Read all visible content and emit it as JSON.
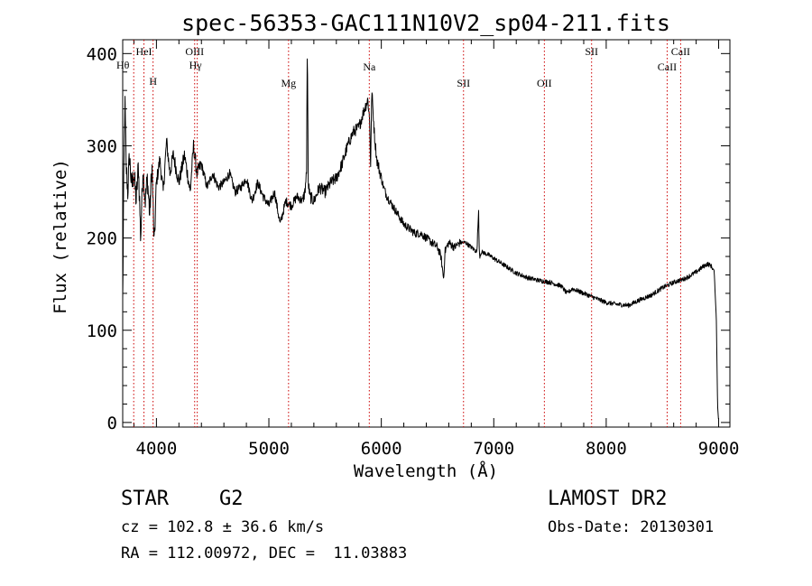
{
  "chart_data": {
    "type": "line",
    "title": "spec-56353-GAC111N10V2_sp04-211.fits",
    "xlabel": "Wavelength (Å)",
    "ylabel": "Flux (relative)",
    "xlim": [
      3700,
      9100
    ],
    "ylim": [
      -5,
      415
    ],
    "xticks": [
      4000,
      5000,
      6000,
      7000,
      8000,
      9000
    ],
    "yticks": [
      0,
      100,
      200,
      300,
      400
    ],
    "grid": false,
    "legend": "none",
    "line_color": "#000000",
    "marker_color": "#cc0000",
    "series": [
      {
        "x": [
          3700,
          3710,
          3720,
          3730,
          3745,
          3760,
          3780,
          3800,
          3820,
          3840,
          3860,
          3880,
          3900,
          3920,
          3940,
          3960,
          3980,
          4000,
          4030,
          4060,
          4090,
          4120,
          4150,
          4200,
          4250,
          4300,
          4330,
          4360,
          4400,
          4450,
          4500,
          4550,
          4600,
          4650,
          4700,
          4750,
          4800,
          4850,
          4900,
          4950,
          5000,
          5050,
          5100,
          5150,
          5200,
          5250,
          5300,
          5320,
          5335,
          5342,
          5350,
          5365,
          5400,
          5450,
          5500,
          5550,
          5600,
          5650,
          5700,
          5750,
          5800,
          5850,
          5880,
          5895,
          5905,
          5915,
          5925,
          5940,
          5960,
          5980,
          6000,
          6020,
          6050,
          6100,
          6150,
          6200,
          6250,
          6300,
          6350,
          6400,
          6450,
          6500,
          6530,
          6555,
          6565,
          6580,
          6600,
          6650,
          6700,
          6750,
          6800,
          6850,
          6865,
          6870,
          6875,
          6890,
          6950,
          7000,
          7100,
          7200,
          7300,
          7400,
          7500,
          7600,
          7650,
          7700,
          7800,
          7900,
          8000,
          8100,
          8200,
          8300,
          8400,
          8500,
          8600,
          8700,
          8800,
          8850,
          8900,
          8930,
          8960,
          8980,
          8990,
          9000
        ],
        "y": [
          130,
          270,
          350,
          280,
          250,
          290,
          255,
          270,
          240,
          280,
          200,
          275,
          240,
          265,
          225,
          280,
          190,
          260,
          285,
          250,
          305,
          270,
          290,
          260,
          290,
          250,
          300,
          270,
          280,
          255,
          270,
          255,
          260,
          270,
          250,
          255,
          265,
          240,
          260,
          245,
          235,
          250,
          215,
          240,
          235,
          245,
          240,
          250,
          270,
          415,
          260,
          245,
          240,
          255,
          250,
          260,
          265,
          280,
          300,
          315,
          320,
          340,
          350,
          330,
          280,
          360,
          340,
          310,
          285,
          275,
          265,
          255,
          245,
          235,
          225,
          215,
          210,
          205,
          205,
          200,
          195,
          190,
          180,
          155,
          185,
          190,
          195,
          190,
          195,
          195,
          190,
          185,
          230,
          190,
          180,
          185,
          182,
          178,
          170,
          162,
          157,
          154,
          152,
          148,
          140,
          145,
          140,
          135,
          130,
          128,
          127,
          133,
          138,
          146,
          152,
          156,
          163,
          168,
          172,
          170,
          165,
          110,
          20,
          0
        ]
      }
    ],
    "lines": [
      {
        "name": "Hθ",
        "x": 3798
      },
      {
        "name": "HeI",
        "x": 3889
      },
      {
        "name": "H",
        "x": 3970
      },
      {
        "name": "OIII",
        "x": 4340
      },
      {
        "name": "Hγ",
        "x": 4363
      },
      {
        "name": "Mg",
        "x": 5175
      },
      {
        "name": "Na",
        "x": 5893
      },
      {
        "name": "SII",
        "x": 6731
      },
      {
        "name": "OII",
        "x": 7450
      },
      {
        "name": "SII",
        "x": 7870
      },
      {
        "name": "CaII",
        "x": 8542
      },
      {
        "name": "CaII",
        "x": 8662
      }
    ]
  },
  "info": {
    "class": "STAR",
    "subclass": "G2",
    "survey": "LAMOST DR2",
    "cz": "cz = 102.8 ± 36.6 km/s",
    "obs_date": "Obs-Date: 20130301",
    "radec": "RA = 112.00972, DEC =  11.03883"
  }
}
